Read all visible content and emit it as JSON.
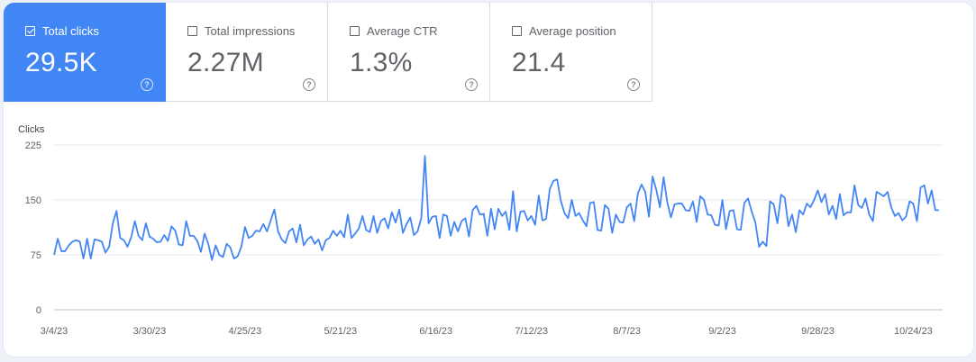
{
  "metrics": [
    {
      "label": "Total clicks",
      "value": "29.5K",
      "active": true
    },
    {
      "label": "Total impressions",
      "value": "2.27M",
      "active": false
    },
    {
      "label": "Average CTR",
      "value": "1.3%",
      "active": false
    },
    {
      "label": "Average position",
      "value": "21.4",
      "active": false
    }
  ],
  "help_glyph": "?",
  "colors": {
    "accent": "#4285f4",
    "line": "#4285f4",
    "grid": "#e8eaed"
  },
  "chart_data": {
    "type": "line",
    "title": "",
    "ylabel": "Clicks",
    "xlabel": "",
    "ylim": [
      0,
      225
    ],
    "yticks": [
      0,
      75,
      150,
      225
    ],
    "xlim": [
      "2023-03-04",
      "2023-11-01"
    ],
    "xticks": [
      "2023-03-04",
      "2023-03-30",
      "2023-04-25",
      "2023-05-21",
      "2023-06-16",
      "2023-07-12",
      "2023-08-07",
      "2023-09-02",
      "2023-09-28",
      "2023-10-24"
    ],
    "xtick_labels": [
      "3/4/23",
      "3/30/23",
      "4/25/23",
      "5/21/23",
      "6/16/23",
      "7/12/23",
      "8/7/23",
      "9/2/23",
      "9/28/23",
      "10/24/23"
    ],
    "grid": true,
    "legend": "none",
    "series": [
      {
        "start": "2023-03-04",
        "interval": "1 day",
        "values": [
          75,
          97,
          80,
          80,
          88,
          93,
          95,
          93,
          70,
          97,
          70,
          96,
          95,
          93,
          78,
          86,
          118,
          135,
          98,
          95,
          86,
          99,
          121,
          101,
          95,
          118,
          100,
          97,
          92,
          93,
          102,
          94,
          114,
          108,
          89,
          88,
          121,
          101,
          101,
          94,
          79,
          104,
          90,
          68,
          88,
          75,
          72,
          90,
          85,
          70,
          73,
          86,
          113,
          98,
          101,
          108,
          107,
          117,
          107,
          122,
          137,
          107,
          96,
          91,
          107,
          111,
          92,
          116,
          88,
          96,
          100,
          90,
          96,
          81,
          95,
          98,
          108,
          101,
          108,
          99,
          130,
          98,
          104,
          111,
          128,
          109,
          106,
          128,
          105,
          121,
          125,
          111,
          133,
          119,
          137,
          105,
          117,
          126,
          102,
          107,
          125,
          210,
          118,
          127,
          128,
          98,
          130,
          128,
          101,
          120,
          107,
          121,
          125,
          100,
          136,
          142,
          130,
          131,
          101,
          138,
          110,
          138,
          128,
          134,
          109,
          162,
          107,
          134,
          135,
          122,
          128,
          116,
          156,
          122,
          124,
          165,
          176,
          178,
          149,
          132,
          125,
          150,
          128,
          132,
          122,
          114,
          146,
          147,
          109,
          108,
          143,
          138,
          105,
          130,
          120,
          119,
          140,
          145,
          121,
          159,
          171,
          161,
          127,
          182,
          164,
          140,
          181,
          147,
          126,
          144,
          145,
          145,
          136,
          135,
          148,
          120,
          155,
          150,
          130,
          129,
          116,
          115,
          150,
          110,
          135,
          136,
          110,
          109,
          146,
          152,
          134,
          119,
          86,
          93,
          87,
          148,
          144,
          118,
          157,
          153,
          114,
          130,
          106,
          136,
          130,
          145,
          140,
          150,
          163,
          147,
          158,
          130,
          142,
          124,
          158,
          129,
          133,
          133,
          170,
          143,
          139,
          152,
          130,
          121,
          161,
          158,
          155,
          161,
          140,
          128,
          132,
          122,
          127,
          148,
          145,
          121,
          167,
          170,
          145,
          163,
          136,
          136
        ]
      }
    ]
  }
}
